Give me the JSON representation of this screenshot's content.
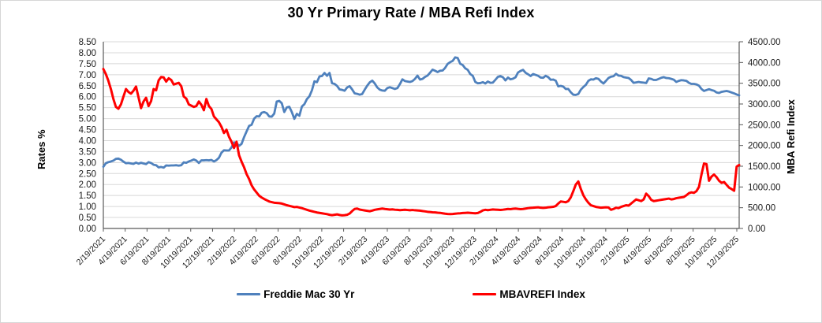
{
  "chart_data": {
    "type": "line",
    "title": "30 Yr Primary Rate / MBA Refi Index",
    "ylabel_left": "Rates %",
    "ylabel_right": "MBA Refi Index",
    "grid": "horizontal-on",
    "legend_position": "bottom",
    "colors": {
      "freddie_blue": "#4F81BD",
      "mba_red": "#FF0000",
      "gridline": "#D8D8D8",
      "axis_line": "#595959",
      "tick_text": "#1a1a1a"
    },
    "y_left_axis": {
      "min": 0,
      "max": 8.5,
      "step": 0.5,
      "ticks": [
        "8.50",
        "8.00",
        "7.50",
        "7.00",
        "6.50",
        "6.00",
        "5.50",
        "5.00",
        "4.50",
        "4.00",
        "3.50",
        "3.00",
        "2.50",
        "2.00",
        "1.50",
        "1.00",
        "0.50",
        "0.00"
      ]
    },
    "y_right_axis": {
      "min": 0,
      "max": 4500,
      "step": 500,
      "ticks": [
        "4500.00",
        "4000.00",
        "3500.00",
        "3000.00",
        "2500.00",
        "2000.00",
        "1500.00",
        "1000.00",
        "500.00",
        "0.00"
      ]
    },
    "x_tick_labels": [
      "2/19/2021",
      "4/19/2021",
      "6/19/2021",
      "8/19/2021",
      "10/19/2021",
      "12/19/2021",
      "2/19/2022",
      "4/19/2022",
      "6/19/2022",
      "8/19/2022",
      "10/19/2022",
      "12/19/2022",
      "2/19/2023",
      "4/19/2023",
      "6/19/2023",
      "8/19/2023",
      "10/19/2023",
      "12/19/2023",
      "2/19/2024",
      "4/19/2024",
      "6/19/2024",
      "8/19/2024",
      "10/19/2024",
      "12/19/2024",
      "2/19/2025",
      "4/19/2025",
      "6/19/2025",
      "8/19/2025",
      "10/19/2025",
      "12/19/2025"
    ],
    "series": [
      {
        "name": "Freddie Mac 30 Yr",
        "axis": "left",
        "color": "#4F81BD",
        "values": [
          2.81,
          2.97,
          3.02,
          3.05,
          3.09,
          3.17,
          3.18,
          3.13,
          3.04,
          2.97,
          2.98,
          2.96,
          2.94,
          3.0,
          2.95,
          2.99,
          2.96,
          2.93,
          3.02,
          2.98,
          2.9,
          2.88,
          2.78,
          2.8,
          2.77,
          2.87,
          2.86,
          2.87,
          2.87,
          2.88,
          2.86,
          2.88,
          3.01,
          2.99,
          3.05,
          3.09,
          3.14,
          3.09,
          2.98,
          3.1,
          3.1,
          3.11,
          3.1,
          3.12,
          3.05,
          3.11,
          3.22,
          3.45,
          3.56,
          3.55,
          3.55,
          3.69,
          3.92,
          3.89,
          3.76,
          3.85,
          4.16,
          4.42,
          4.67,
          4.72,
          5.0,
          5.11,
          5.1,
          5.27,
          5.3,
          5.25,
          5.1,
          5.09,
          5.23,
          5.78,
          5.81,
          5.7,
          5.3,
          5.51,
          5.54,
          5.3,
          4.99,
          5.22,
          5.13,
          5.55,
          5.66,
          5.89,
          6.02,
          6.29,
          6.7,
          6.66,
          6.92,
          6.94,
          7.08,
          6.95,
          7.08,
          6.61,
          6.58,
          6.49,
          6.33,
          6.31,
          6.27,
          6.42,
          6.48,
          6.33,
          6.15,
          6.13,
          6.09,
          6.12,
          6.32,
          6.5,
          6.65,
          6.73,
          6.6,
          6.42,
          6.32,
          6.28,
          6.27,
          6.39,
          6.43,
          6.39,
          6.35,
          6.39,
          6.57,
          6.79,
          6.71,
          6.69,
          6.67,
          6.71,
          6.81,
          6.96,
          6.78,
          6.81,
          6.9,
          6.96,
          7.09,
          7.23,
          7.18,
          7.12,
          7.18,
          7.19,
          7.31,
          7.49,
          7.57,
          7.63,
          7.79,
          7.76,
          7.5,
          7.44,
          7.29,
          7.22,
          7.03,
          6.95,
          6.67,
          6.61,
          6.62,
          6.66,
          6.6,
          6.69,
          6.63,
          6.64,
          6.77,
          6.9,
          6.94,
          6.88,
          6.74,
          6.87,
          6.79,
          6.82,
          6.88,
          7.1,
          7.17,
          7.22,
          7.09,
          7.02,
          6.94,
          7.03,
          6.99,
          6.95,
          6.87,
          6.86,
          6.95,
          6.89,
          6.77,
          6.78,
          6.73,
          6.47,
          6.49,
          6.46,
          6.35,
          6.35,
          6.2,
          6.09,
          6.08,
          6.12,
          6.32,
          6.44,
          6.54,
          6.72,
          6.79,
          6.78,
          6.84,
          6.81,
          6.69,
          6.6,
          6.72,
          6.85,
          6.91,
          6.93,
          7.04,
          6.96,
          6.95,
          6.89,
          6.87,
          6.85,
          6.76,
          6.63,
          6.65,
          6.67,
          6.65,
          6.64,
          6.62,
          6.83,
          6.81,
          6.76,
          6.76,
          6.81,
          6.86,
          6.89,
          6.85,
          6.84,
          6.81,
          6.77,
          6.67,
          6.72,
          6.75,
          6.74,
          6.72,
          6.63,
          6.58,
          6.58,
          6.56,
          6.5,
          6.35,
          6.26,
          6.3,
          6.34,
          6.3,
          6.27,
          6.19,
          6.17,
          6.22,
          6.24,
          6.26,
          6.23,
          6.19,
          6.15,
          6.1,
          6.06
        ]
      },
      {
        "name": "MBAVREFI Index",
        "axis": "right",
        "color": "#FF0000",
        "values": [
          3843,
          3720,
          3560,
          3360,
          3120,
          2930,
          2885,
          2990,
          3180,
          3360,
          3290,
          3250,
          3320,
          3420,
          3160,
          2900,
          3060,
          3150,
          2950,
          3070,
          3360,
          3330,
          3570,
          3650,
          3640,
          3540,
          3620,
          3580,
          3470,
          3490,
          3510,
          3430,
          3180,
          3130,
          2990,
          2960,
          2930,
          2950,
          3060,
          2980,
          2850,
          3120,
          2950,
          2880,
          2700,
          2630,
          2560,
          2450,
          2300,
          2380,
          2210,
          2090,
          1940,
          2090,
          1765,
          1610,
          1475,
          1310,
          1190,
          1040,
          940,
          865,
          790,
          745,
          710,
          680,
          650,
          635,
          620,
          615,
          610,
          600,
          580,
          560,
          545,
          530,
          515,
          520,
          505,
          490,
          470,
          450,
          430,
          415,
          400,
          385,
          375,
          365,
          355,
          345,
          330,
          320,
          330,
          340,
          325,
          315,
          320,
          330,
          360,
          420,
          470,
          480,
          455,
          445,
          435,
          425,
          415,
          430,
          450,
          460,
          470,
          480,
          470,
          462,
          455,
          460,
          452,
          448,
          442,
          446,
          450,
          445,
          440,
          445,
          438,
          434,
          430,
          420,
          412,
          402,
          396,
          390,
          386,
          380,
          376,
          366,
          356,
          350,
          346,
          350,
          356,
          362,
          366,
          372,
          376,
          380,
          376,
          370,
          366,
          372,
          400,
          436,
          450,
          442,
          450,
          458,
          454,
          450,
          446,
          452,
          460,
          470,
          466,
          474,
          480,
          472,
          466,
          470,
          480,
          490,
          496,
          500,
          506,
          510,
          500,
          496,
          500,
          510,
          516,
          522,
          540,
          600,
          650,
          642,
          632,
          660,
          750,
          900,
          1060,
          1132,
          950,
          800,
          700,
          620,
          560,
          540,
          520,
          510,
          500,
          506,
          510,
          505,
          450,
          470,
          500,
          490,
          520,
          540,
          560,
          550,
          600,
          650,
          700,
          680,
          660,
          700,
          840,
          780,
          690,
          660,
          670,
          680,
          690,
          700,
          710,
          720,
          700,
          710,
          730,
          740,
          750,
          760,
          800,
          850,
          870,
          860,
          900,
          1000,
          1300,
          1565,
          1550,
          1150,
          1250,
          1300,
          1236,
          1150,
          1100,
          1120,
          1050,
          982,
          950,
          909,
          1491,
          1530
        ]
      }
    ]
  }
}
